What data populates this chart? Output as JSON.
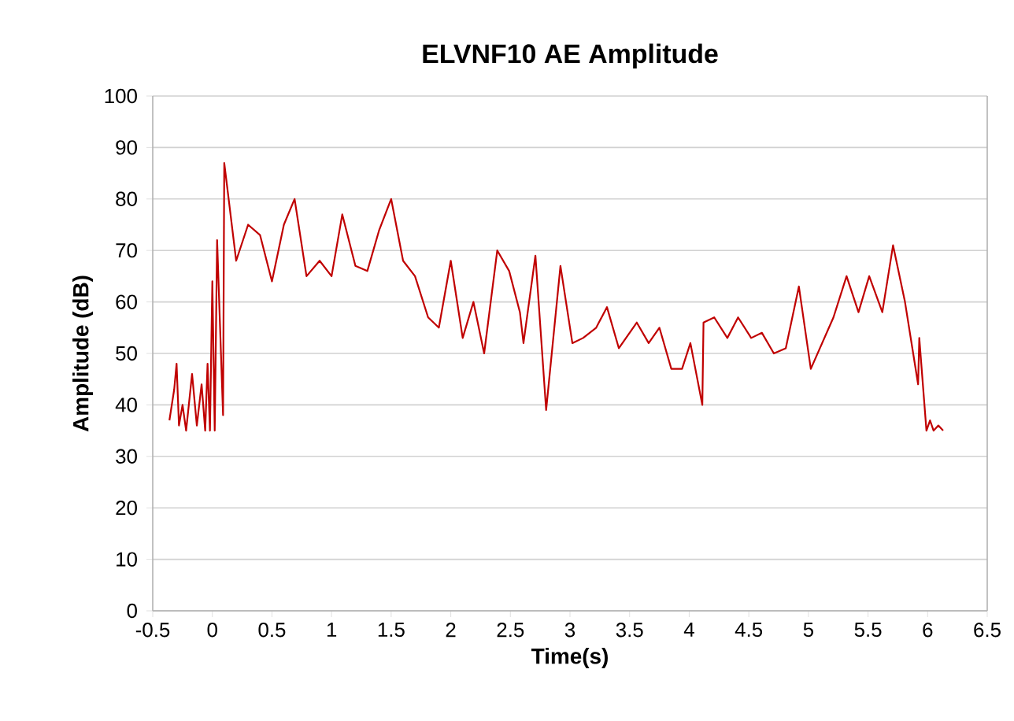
{
  "chart_data": {
    "type": "line",
    "title": "ELVNF10 AE Amplitude",
    "xlabel": "Time(s)",
    "ylabel": "Amplitude (dB)",
    "xlim": [
      -0.5,
      6.5
    ],
    "ylim": [
      0,
      100
    ],
    "xticks": [
      {
        "value": -0.5,
        "label": "-0.5"
      },
      0,
      0.5,
      1,
      1.5,
      2,
      2.5,
      3,
      3.5,
      4,
      4.5,
      5,
      5.5,
      6,
      6.5
    ],
    "yticks": [
      0,
      10,
      20,
      30,
      40,
      50,
      60,
      70,
      80,
      90,
      100
    ],
    "grid": "y",
    "marker": "none",
    "line_style": "solid",
    "series": [
      {
        "color": "#c00000",
        "x": [
          -0.36,
          -0.32,
          -0.3,
          -0.28,
          -0.25,
          -0.22,
          -0.17,
          -0.13,
          -0.09,
          -0.06,
          -0.04,
          -0.02,
          0.0,
          0.02,
          0.04,
          0.09,
          0.1,
          0.2,
          0.3,
          0.4,
          0.5,
          0.6,
          0.69,
          0.79,
          0.9,
          1.0,
          1.09,
          1.2,
          1.3,
          1.4,
          1.5,
          1.6,
          1.7,
          1.81,
          1.9,
          2.0,
          2.1,
          2.19,
          2.28,
          2.39,
          2.49,
          2.58,
          2.61,
          2.71,
          2.8,
          2.92,
          3.02,
          3.11,
          3.22,
          3.31,
          3.41,
          3.56,
          3.66,
          3.75,
          3.85,
          3.94,
          4.01,
          4.11,
          4.12,
          4.21,
          4.32,
          4.41,
          4.52,
          4.61,
          4.71,
          4.81,
          4.92,
          5.02,
          5.21,
          5.32,
          5.42,
          5.51,
          5.62,
          5.71,
          5.81,
          5.92,
          5.93,
          5.99,
          6.02,
          6.05,
          6.09,
          6.13
        ],
        "values": [
          37,
          43,
          48,
          36,
          40,
          35,
          46,
          36,
          44,
          35,
          48,
          35,
          64,
          35,
          72,
          38,
          87,
          68,
          75,
          73,
          64,
          75,
          80,
          65,
          68,
          65,
          77,
          67,
          66,
          74,
          80,
          68,
          65,
          57,
          55,
          68,
          53,
          60,
          50,
          70,
          66,
          58,
          52,
          69,
          39,
          67,
          52,
          53,
          55,
          59,
          51,
          56,
          52,
          55,
          47,
          47,
          52,
          40,
          56,
          57,
          53,
          57,
          53,
          54,
          50,
          51,
          63,
          47,
          57,
          65,
          58,
          65,
          58,
          71,
          60,
          44,
          53,
          35,
          37,
          35,
          36,
          35
        ]
      }
    ]
  }
}
